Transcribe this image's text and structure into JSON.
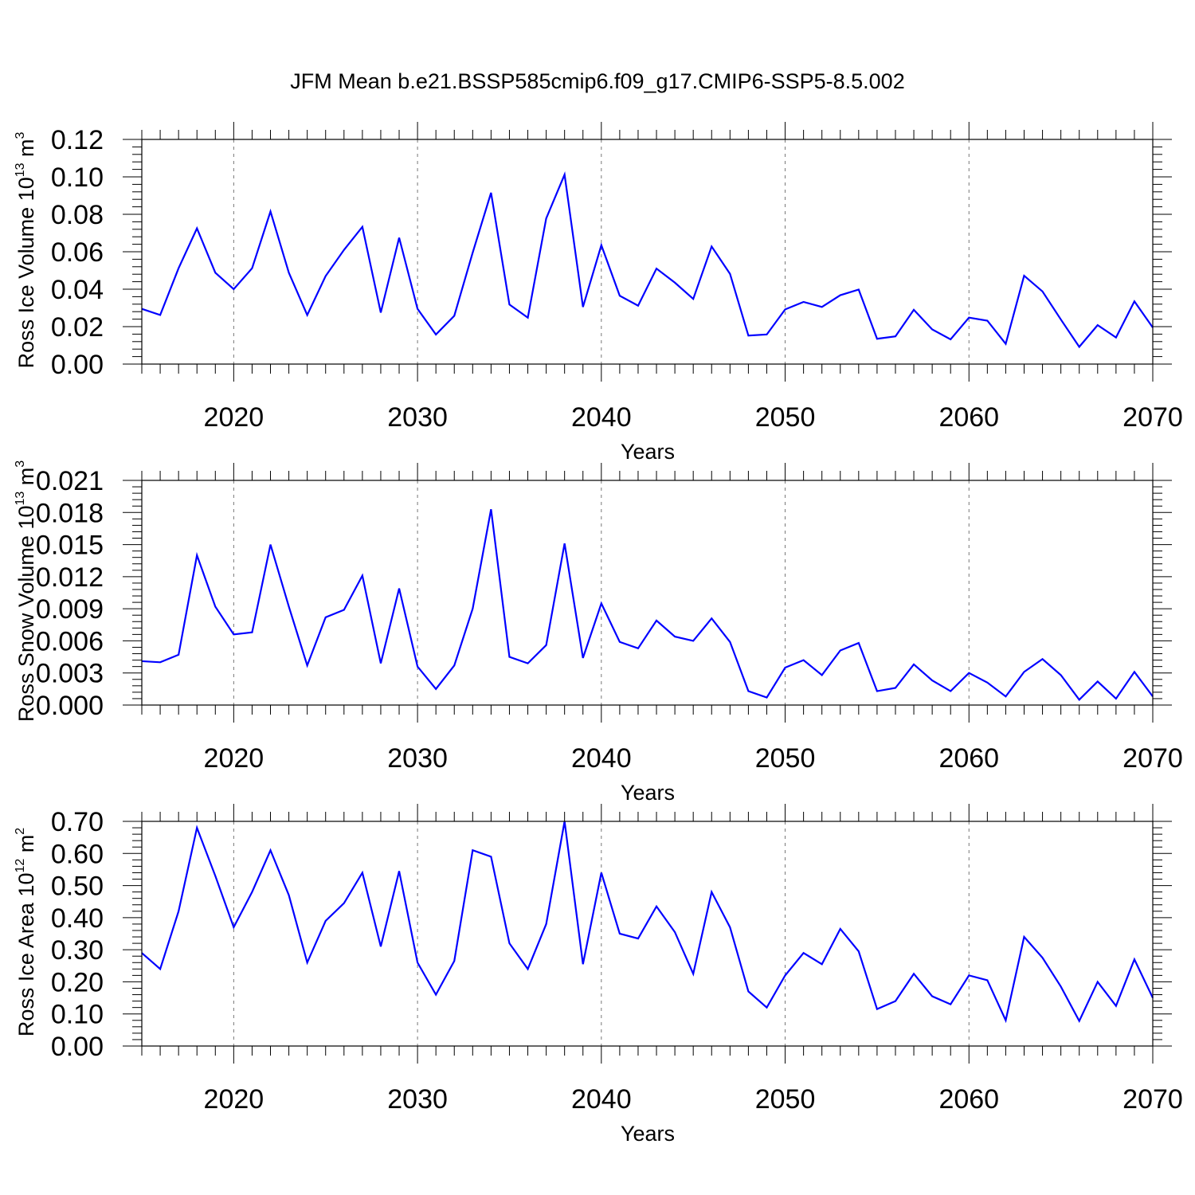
{
  "title": "JFM Mean b.e21.BSSP585cmip6.f09_g17.CMIP6-SSP5-8.5.002",
  "colors": {
    "line": "#0000ff",
    "axis": "#000000",
    "grid": "#777777"
  },
  "chart_data": [
    {
      "type": "line",
      "ylabel_main": "Ross Ice Volume 10",
      "ylabel_exp": "13",
      "ylabel_unit": " m",
      "ylabel_unit_exp": "3",
      "xlabel": "Years",
      "xlim": [
        2015,
        2070
      ],
      "ylim": [
        0,
        0.12
      ],
      "xticks": [
        2020,
        2030,
        2040,
        2050,
        2060,
        2070
      ],
      "yticks": [
        "0.00",
        "0.02",
        "0.04",
        "0.06",
        "0.08",
        "0.10",
        "0.12"
      ],
      "grid_x": [
        2020,
        2030,
        2040,
        2050,
        2060
      ],
      "series": [
        {
          "name": "Ross Ice Volume",
          "x": [
            2015,
            2016,
            2017,
            2018,
            2019,
            2020,
            2021,
            2022,
            2023,
            2024,
            2025,
            2026,
            2027,
            2028,
            2029,
            2030,
            2031,
            2032,
            2033,
            2034,
            2035,
            2036,
            2037,
            2038,
            2039,
            2040,
            2041,
            2042,
            2043,
            2044,
            2045,
            2046,
            2047,
            2048,
            2049,
            2050,
            2051,
            2052,
            2053,
            2054,
            2055,
            2056,
            2057,
            2058,
            2059,
            2060,
            2061,
            2062,
            2063,
            2064,
            2065,
            2066,
            2067,
            2068,
            2069,
            2070
          ],
          "values": [
            0.0295,
            0.0262,
            0.0512,
            0.0725,
            0.0488,
            0.04,
            0.0512,
            0.0815,
            0.0488,
            0.0262,
            0.047,
            0.061,
            0.0733,
            0.0275,
            0.0675,
            0.0295,
            0.0158,
            0.0258,
            0.0595,
            0.0915,
            0.0318,
            0.0248,
            0.0778,
            0.1012,
            0.0305,
            0.0635,
            0.0365,
            0.0312,
            0.051,
            0.0435,
            0.0348,
            0.0628,
            0.0482,
            0.0152,
            0.0158,
            0.0292,
            0.0332,
            0.0305,
            0.0368,
            0.0398,
            0.0135,
            0.0148,
            0.029,
            0.0185,
            0.0132,
            0.0248,
            0.0232,
            0.0108,
            0.0472,
            0.0388,
            0.0238,
            0.0092,
            0.0208,
            0.0142,
            0.0335,
            0.0195
          ]
        }
      ]
    },
    {
      "type": "line",
      "ylabel_main": "Ross Snow Volume 10",
      "ylabel_exp": "13",
      "ylabel_unit": " m",
      "ylabel_unit_exp": "3",
      "xlabel": "Years",
      "xlim": [
        2015,
        2070
      ],
      "ylim": [
        0,
        0.021
      ],
      "xticks": [
        2020,
        2030,
        2040,
        2050,
        2060,
        2070
      ],
      "yticks": [
        "0.000",
        "0.003",
        "0.006",
        "0.009",
        "0.012",
        "0.015",
        "0.018",
        "0.021"
      ],
      "grid_x": [
        2020,
        2030,
        2040,
        2050,
        2060
      ],
      "series": [
        {
          "name": "Ross Snow Volume",
          "x": [
            2015,
            2016,
            2017,
            2018,
            2019,
            2020,
            2021,
            2022,
            2023,
            2024,
            2025,
            2026,
            2027,
            2028,
            2029,
            2030,
            2031,
            2032,
            2033,
            2034,
            2035,
            2036,
            2037,
            2038,
            2039,
            2040,
            2041,
            2042,
            2043,
            2044,
            2045,
            2046,
            2047,
            2048,
            2049,
            2050,
            2051,
            2052,
            2053,
            2054,
            2055,
            2056,
            2057,
            2058,
            2059,
            2060,
            2061,
            2062,
            2063,
            2064,
            2065,
            2066,
            2067,
            2068,
            2069,
            2070
          ],
          "values": [
            0.0041,
            0.004,
            0.0047,
            0.014,
            0.0092,
            0.0066,
            0.0068,
            0.015,
            0.0092,
            0.0037,
            0.0082,
            0.0089,
            0.0121,
            0.0039,
            0.0109,
            0.0036,
            0.0015,
            0.0037,
            0.009,
            0.0183,
            0.0045,
            0.0039,
            0.0056,
            0.0151,
            0.0044,
            0.0095,
            0.0059,
            0.0053,
            0.0079,
            0.0064,
            0.006,
            0.0081,
            0.0059,
            0.0013,
            0.0007,
            0.0035,
            0.0042,
            0.0028,
            0.0051,
            0.0058,
            0.0013,
            0.0016,
            0.0038,
            0.0023,
            0.0013,
            0.003,
            0.0021,
            0.0008,
            0.0031,
            0.0043,
            0.0028,
            0.0005,
            0.0022,
            0.0006,
            0.0031,
            0.0008
          ]
        }
      ]
    },
    {
      "type": "line",
      "ylabel_main": "Ross Ice Area 10",
      "ylabel_exp": "12",
      "ylabel_unit": " m",
      "ylabel_unit_exp": "2",
      "xlabel": "Years",
      "xlim": [
        2015,
        2070
      ],
      "ylim": [
        0,
        0.7
      ],
      "xticks": [
        2020,
        2030,
        2040,
        2050,
        2060,
        2070
      ],
      "yticks": [
        "0.00",
        "0.10",
        "0.20",
        "0.30",
        "0.40",
        "0.50",
        "0.60",
        "0.70"
      ],
      "grid_x": [
        2020,
        2030,
        2040,
        2050,
        2060
      ],
      "series": [
        {
          "name": "Ross Ice Area",
          "x": [
            2015,
            2016,
            2017,
            2018,
            2019,
            2020,
            2021,
            2022,
            2023,
            2024,
            2025,
            2026,
            2027,
            2028,
            2029,
            2030,
            2031,
            2032,
            2033,
            2034,
            2035,
            2036,
            2037,
            2038,
            2039,
            2040,
            2041,
            2042,
            2043,
            2044,
            2045,
            2046,
            2047,
            2048,
            2049,
            2050,
            2051,
            2052,
            2053,
            2054,
            2055,
            2056,
            2057,
            2058,
            2059,
            2060,
            2061,
            2062,
            2063,
            2064,
            2065,
            2066,
            2067,
            2068,
            2069,
            2070
          ],
          "values": [
            0.29,
            0.24,
            0.42,
            0.68,
            0.53,
            0.37,
            0.48,
            0.61,
            0.47,
            0.26,
            0.39,
            0.445,
            0.54,
            0.31,
            0.545,
            0.26,
            0.16,
            0.265,
            0.61,
            0.59,
            0.32,
            0.24,
            0.38,
            0.7,
            0.255,
            0.54,
            0.35,
            0.335,
            0.435,
            0.355,
            0.225,
            0.48,
            0.37,
            0.17,
            0.12,
            0.22,
            0.29,
            0.255,
            0.365,
            0.295,
            0.115,
            0.14,
            0.225,
            0.155,
            0.13,
            0.22,
            0.205,
            0.08,
            0.34,
            0.275,
            0.185,
            0.078,
            0.2,
            0.125,
            0.27,
            0.15
          ]
        }
      ]
    }
  ]
}
